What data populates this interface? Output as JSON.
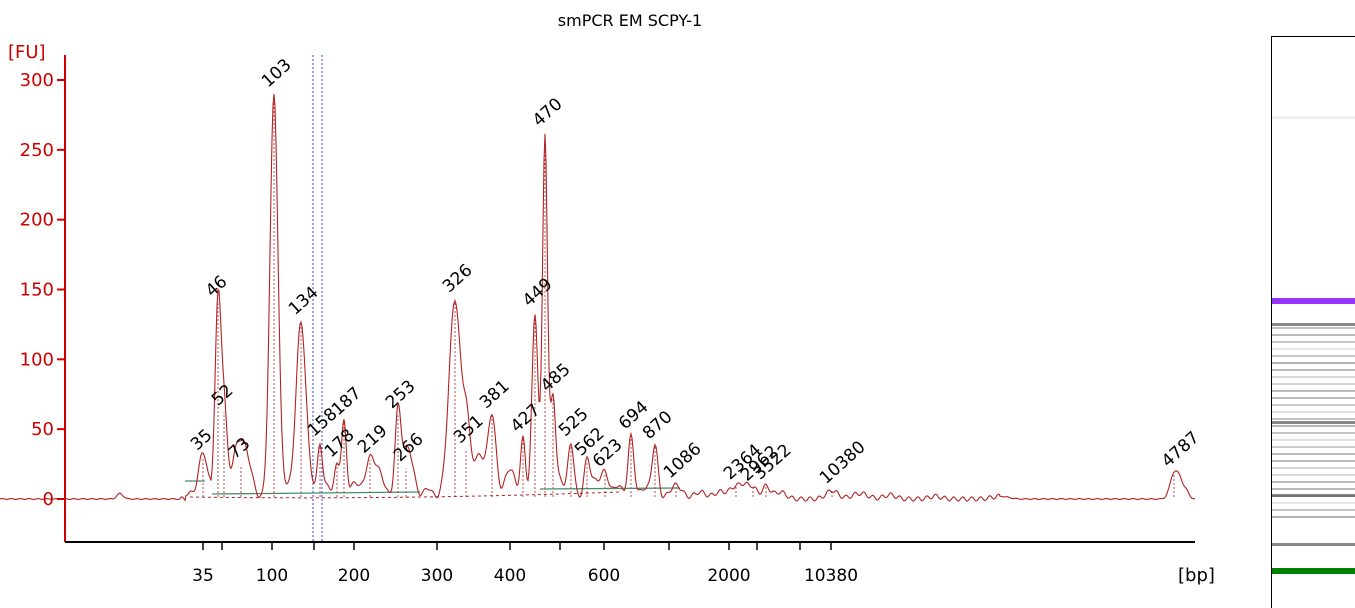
{
  "chart_data": {
    "type": "line",
    "title": "smPCR EM SCPY-1",
    "ylabel": "[FU]",
    "xlabel": "[bp]",
    "ylim": [
      -30,
      320
    ],
    "y_ticks": [
      0,
      50,
      100,
      150,
      200,
      250,
      300
    ],
    "x_tick_labels": [
      "35",
      "100",
      "200",
      "300",
      "400",
      "600",
      "2000",
      "10380"
    ],
    "grid": false,
    "colors": {
      "trace": "#b22222",
      "axis": "#d00000",
      "lower_marker": "#008000",
      "upper_marker": "#9933ff"
    },
    "peaks": [
      {
        "label": "35",
        "value": 30,
        "kind": "lower_marker"
      },
      {
        "label": "46",
        "value": 140,
        "kind": "peak"
      },
      {
        "label": "52",
        "value": 62,
        "kind": "peak"
      },
      {
        "label": "73",
        "value": 24,
        "kind": "peak"
      },
      {
        "label": "103",
        "value": 290,
        "kind": "peak"
      },
      {
        "label": "134",
        "value": 127,
        "kind": "peak"
      },
      {
        "label": "158",
        "value": 40,
        "kind": "peak"
      },
      {
        "label": "178",
        "value": 25,
        "kind": "peak"
      },
      {
        "label": "187",
        "value": 55,
        "kind": "peak"
      },
      {
        "label": "219",
        "value": 28,
        "kind": "peak"
      },
      {
        "label": "253",
        "value": 60,
        "kind": "peak"
      },
      {
        "label": "266",
        "value": 22,
        "kind": "peak"
      },
      {
        "label": "326",
        "value": 143,
        "kind": "peak"
      },
      {
        "label": "351",
        "value": 35,
        "kind": "peak"
      },
      {
        "label": "381",
        "value": 60,
        "kind": "peak"
      },
      {
        "label": "427",
        "value": 43,
        "kind": "peak"
      },
      {
        "label": "449",
        "value": 133,
        "kind": "peak"
      },
      {
        "label": "470",
        "value": 262,
        "kind": "peak"
      },
      {
        "label": "485",
        "value": 72,
        "kind": "peak"
      },
      {
        "label": "525",
        "value": 40,
        "kind": "peak"
      },
      {
        "label": "562",
        "value": 26,
        "kind": "peak"
      },
      {
        "label": "623",
        "value": 18,
        "kind": "peak"
      },
      {
        "label": "694",
        "value": 45,
        "kind": "peak"
      },
      {
        "label": "870",
        "value": 38,
        "kind": "peak"
      },
      {
        "label": "1086",
        "value": 10,
        "kind": "peak"
      },
      {
        "label": "2364",
        "value": 9,
        "kind": "peak"
      },
      {
        "label": "2962",
        "value": 8,
        "kind": "peak"
      },
      {
        "label": "3522",
        "value": 9,
        "kind": "peak"
      },
      {
        "label": "10380",
        "value": 6,
        "kind": "upper_marker"
      },
      {
        "label": "4787",
        "value": 18,
        "kind": "peak"
      }
    ],
    "gel_bands": [
      {
        "level": 0.08,
        "kind": "normal"
      },
      {
        "level": 0.45,
        "kind": "upper_marker"
      },
      {
        "level": 0.5,
        "kind": "normal"
      },
      {
        "level": 0.7,
        "kind": "normal"
      },
      {
        "level": 0.85,
        "kind": "normal"
      },
      {
        "level": 0.95,
        "kind": "normal"
      },
      {
        "level": 1.0,
        "kind": "lower_marker"
      }
    ]
  }
}
